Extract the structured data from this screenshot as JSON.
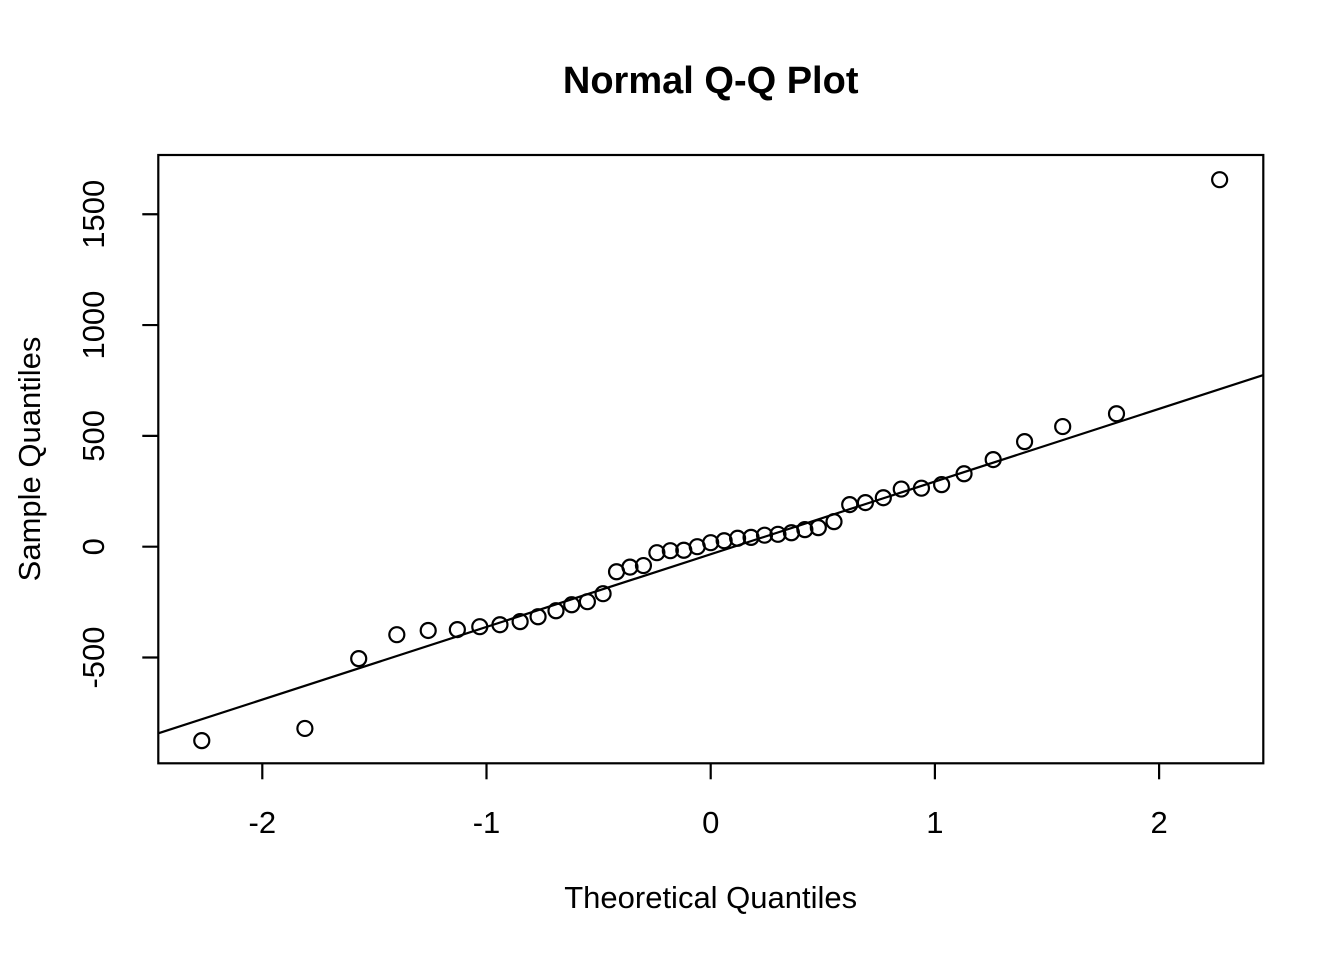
{
  "figure": {
    "background": "#ffffff",
    "foreground": "#000000"
  },
  "chart_data": {
    "type": "scatter",
    "title": "Normal Q-Q Plot",
    "xlabel": "Theoretical Quantiles",
    "ylabel": "Sample Quantiles",
    "x_ticks": [
      -2,
      -1,
      0,
      1,
      2
    ],
    "y_ticks": [
      -500,
      0,
      500,
      1000,
      1500
    ],
    "xlim": [
      -2.46,
      2.46
    ],
    "ylim": [
      -975,
      1770
    ],
    "grid": false,
    "legend": false,
    "marker": "open-circle",
    "points": [
      [
        -2.27,
        -875
      ],
      [
        -1.81,
        -820
      ],
      [
        -1.57,
        -505
      ],
      [
        -1.4,
        -397
      ],
      [
        -1.26,
        -378
      ],
      [
        -1.13,
        -374
      ],
      [
        -1.03,
        -361
      ],
      [
        -0.94,
        -352
      ],
      [
        -0.85,
        -338
      ],
      [
        -0.77,
        -316
      ],
      [
        -0.69,
        -289
      ],
      [
        -0.62,
        -262
      ],
      [
        -0.55,
        -248
      ],
      [
        -0.48,
        -212
      ],
      [
        -0.42,
        -113
      ],
      [
        -0.36,
        -92
      ],
      [
        -0.3,
        -85
      ],
      [
        -0.24,
        -27
      ],
      [
        -0.18,
        -18
      ],
      [
        -0.12,
        -16
      ],
      [
        -0.06,
        0
      ],
      [
        0.0,
        18
      ],
      [
        0.06,
        27
      ],
      [
        0.12,
        38
      ],
      [
        0.18,
        42
      ],
      [
        0.24,
        52
      ],
      [
        0.3,
        56
      ],
      [
        0.36,
        63
      ],
      [
        0.42,
        77
      ],
      [
        0.48,
        86
      ],
      [
        0.55,
        113
      ],
      [
        0.62,
        190
      ],
      [
        0.69,
        199
      ],
      [
        0.77,
        221
      ],
      [
        0.85,
        260
      ],
      [
        0.94,
        264
      ],
      [
        1.03,
        280
      ],
      [
        1.13,
        329
      ],
      [
        1.26,
        393
      ],
      [
        1.4,
        474
      ],
      [
        1.57,
        542
      ],
      [
        1.81,
        600
      ],
      [
        2.27,
        1656
      ]
    ],
    "reference_line": {
      "slope": 328,
      "intercept": -34
    },
    "colors": {
      "points": "#000000",
      "line": "#000000",
      "box": "#000000",
      "background": "#ffffff"
    }
  }
}
